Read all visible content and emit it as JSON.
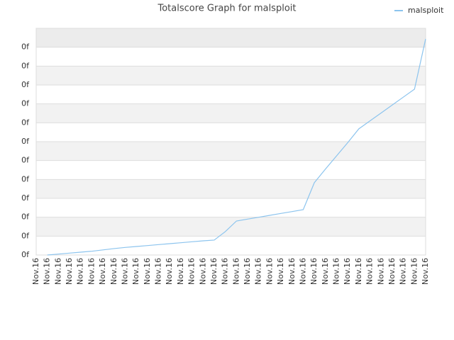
{
  "chart_data": {
    "type": "line",
    "title": "Totalscore Graph for malsploit",
    "categories": [
      "Nov.16",
      "Nov.16",
      "Nov.16",
      "Nov.16",
      "Nov.16",
      "Nov.16",
      "Nov.16",
      "Nov.16",
      "Nov.16",
      "Nov.16",
      "Nov.16",
      "Nov.16",
      "Nov.16",
      "Nov.16",
      "Nov.16",
      "Nov.16",
      "Nov.16",
      "Nov.16",
      "Nov.16",
      "Nov.16",
      "Nov.16",
      "Nov.16",
      "Nov.16",
      "Nov.16",
      "Nov.16",
      "Nov.16",
      "Nov.16",
      "Nov.16",
      "Nov.16",
      "Nov.16",
      "Nov.16",
      "Nov.16",
      "Nov.16",
      "Nov.16",
      "Nov.16",
      "Nov.16"
    ],
    "series": [
      {
        "name": "malsploit",
        "color": "#8cc4ee",
        "values": [
          null,
          0,
          0.05,
          0.1,
          0.15,
          0.2,
          0.27,
          0.34,
          0.4,
          0.45,
          0.5,
          0.55,
          0.6,
          0.65,
          0.7,
          0.75,
          0.79,
          1.24,
          1.8,
          1.9,
          2.0,
          2.1,
          2.2,
          2.3,
          2.4,
          3.83,
          4.55,
          5.25,
          5.95,
          6.68,
          7.1,
          7.52,
          7.94,
          8.36,
          8.78,
          11.44
        ]
      }
    ],
    "ylim": [
      0,
      12
    ],
    "yticks": [
      {
        "value": 0,
        "label": "0f"
      },
      {
        "value": 1,
        "label": "0f"
      },
      {
        "value": 2,
        "label": "0f"
      },
      {
        "value": 3,
        "label": "0f"
      },
      {
        "value": 4,
        "label": "0f"
      },
      {
        "value": 5,
        "label": "0f"
      },
      {
        "value": 6,
        "label": "0f"
      },
      {
        "value": 7,
        "label": "0f"
      },
      {
        "value": 8,
        "label": "0f"
      },
      {
        "value": 9,
        "label": "0f"
      },
      {
        "value": 10,
        "label": "0f"
      },
      {
        "value": 11,
        "label": "0f"
      }
    ],
    "grid": true,
    "legend": "top-right"
  }
}
